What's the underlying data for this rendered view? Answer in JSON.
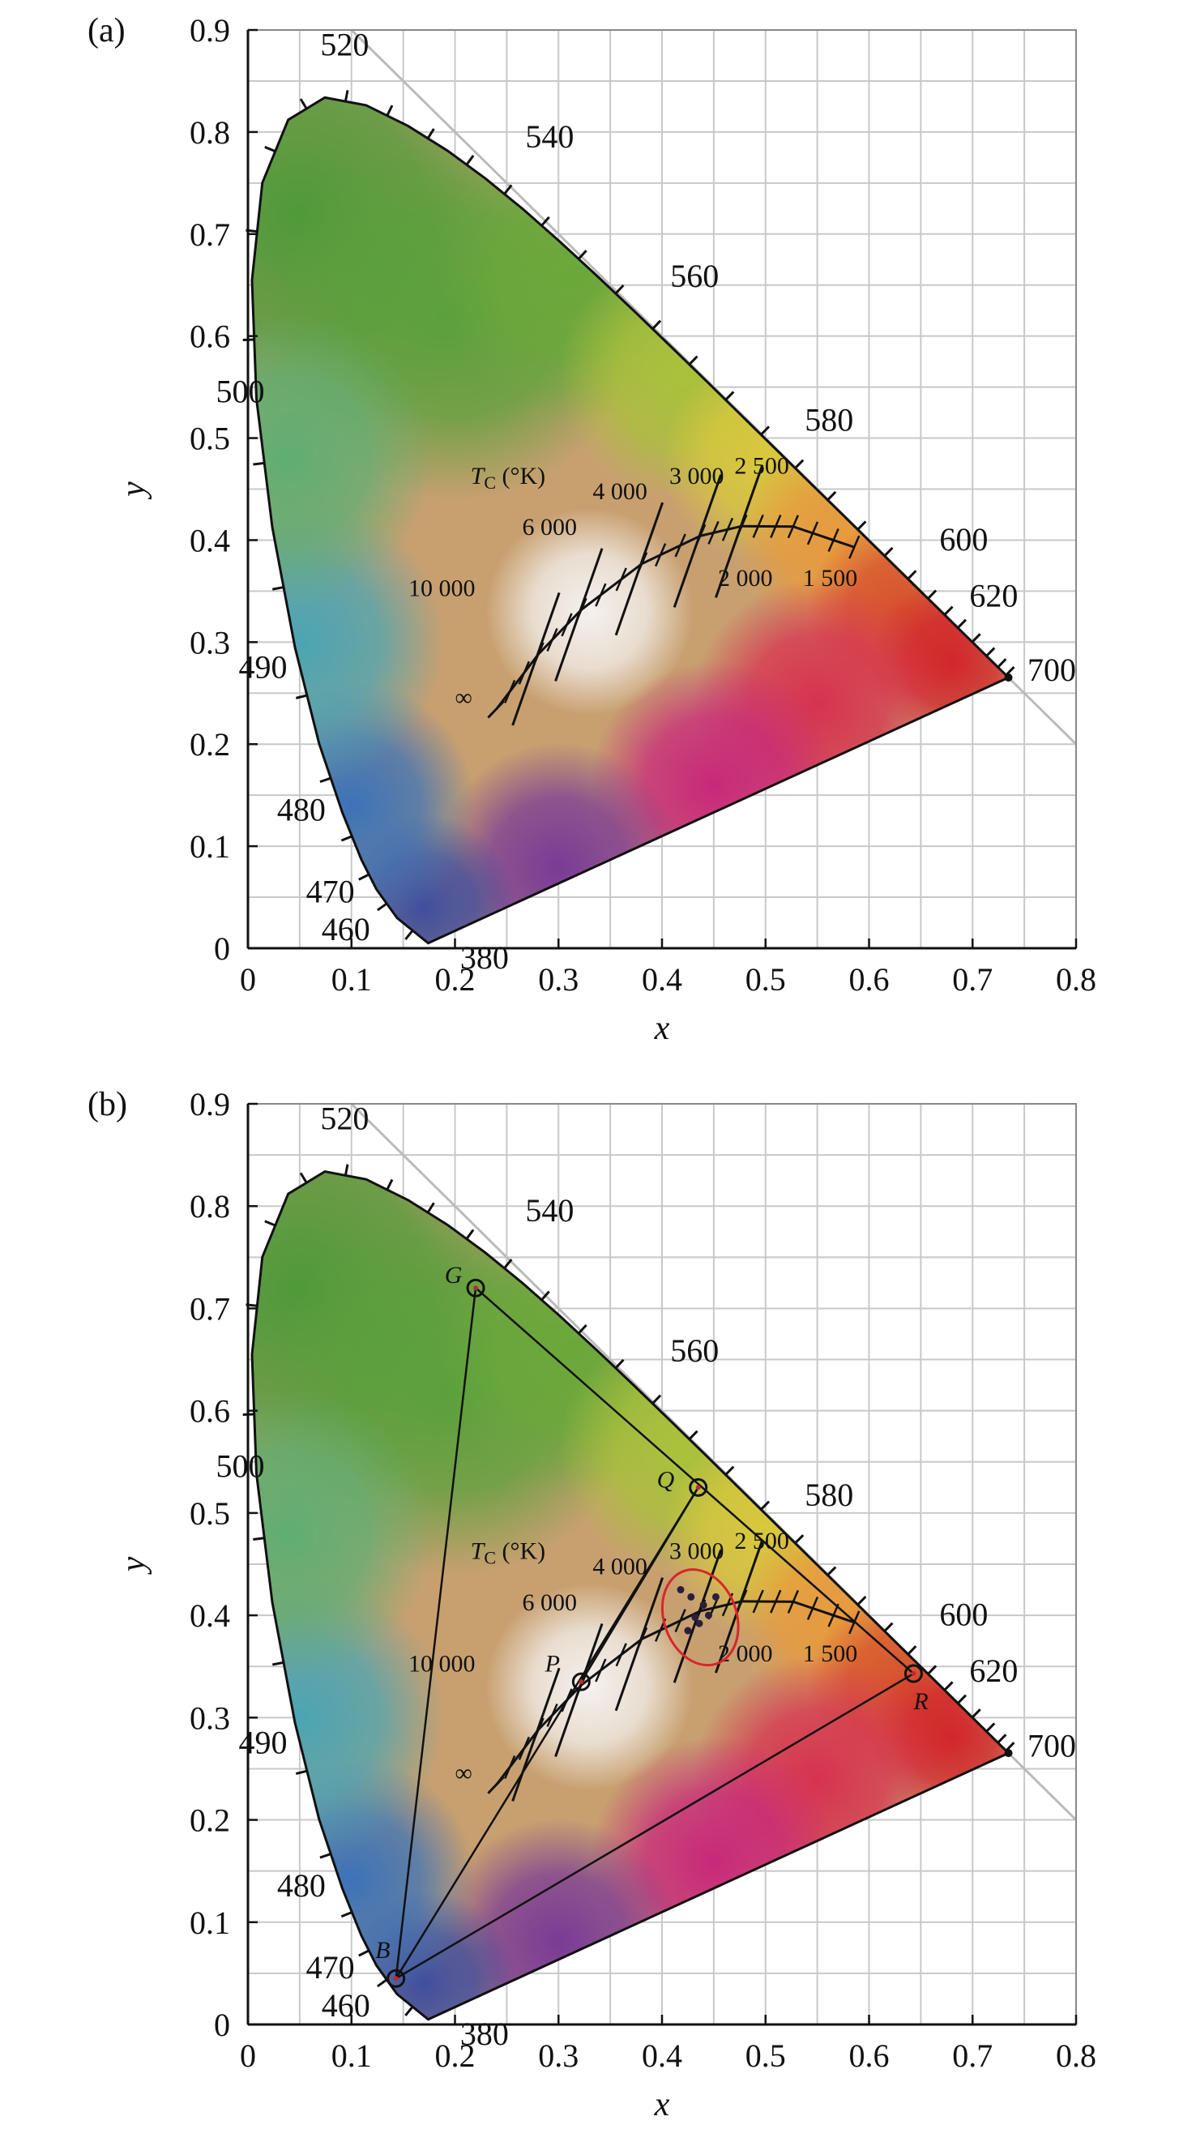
{
  "chart_data": [
    {
      "panel_label": "(a)",
      "type": "chromaticity-diagram",
      "xlabel": "x",
      "ylabel": "y",
      "xlim": [
        0,
        0.8
      ],
      "ylim": [
        0,
        0.9
      ],
      "xticks": [
        "0",
        "0.1",
        "0.2",
        "0.3",
        "0.4",
        "0.5",
        "0.6",
        "0.7",
        "0.8"
      ],
      "yticks": [
        "0",
        "0.1",
        "0.2",
        "0.3",
        "0.4",
        "0.5",
        "0.6",
        "0.7",
        "0.8",
        "0.9"
      ],
      "grid": true,
      "spectral_locus": [
        {
          "nm": 380,
          "x": 0.1741,
          "y": 0.005
        },
        {
          "nm": 460,
          "x": 0.144,
          "y": 0.0297
        },
        {
          "nm": 470,
          "x": 0.1241,
          "y": 0.0578
        },
        {
          "nm": 475,
          "x": 0.1096,
          "y": 0.0868
        },
        {
          "nm": 480,
          "x": 0.0913,
          "y": 0.1327
        },
        {
          "nm": 485,
          "x": 0.0687,
          "y": 0.2007
        },
        {
          "nm": 490,
          "x": 0.0454,
          "y": 0.295
        },
        {
          "nm": 495,
          "x": 0.0235,
          "y": 0.4127
        },
        {
          "nm": 500,
          "x": 0.0082,
          "y": 0.5384
        },
        {
          "nm": 505,
          "x": 0.0039,
          "y": 0.6548
        },
        {
          "nm": 510,
          "x": 0.0139,
          "y": 0.7502
        },
        {
          "nm": 515,
          "x": 0.0389,
          "y": 0.812
        },
        {
          "nm": 520,
          "x": 0.0743,
          "y": 0.8338
        },
        {
          "nm": 525,
          "x": 0.1142,
          "y": 0.8262
        },
        {
          "nm": 530,
          "x": 0.1547,
          "y": 0.8059
        },
        {
          "nm": 535,
          "x": 0.1929,
          "y": 0.7816
        },
        {
          "nm": 540,
          "x": 0.2296,
          "y": 0.7543
        },
        {
          "nm": 545,
          "x": 0.2658,
          "y": 0.7243
        },
        {
          "nm": 550,
          "x": 0.3016,
          "y": 0.6923
        },
        {
          "nm": 555,
          "x": 0.3373,
          "y": 0.6589
        },
        {
          "nm": 560,
          "x": 0.3731,
          "y": 0.6245
        },
        {
          "nm": 565,
          "x": 0.4087,
          "y": 0.5896
        },
        {
          "nm": 570,
          "x": 0.4441,
          "y": 0.5547
        },
        {
          "nm": 575,
          "x": 0.4788,
          "y": 0.5202
        },
        {
          "nm": 580,
          "x": 0.5125,
          "y": 0.4866
        },
        {
          "nm": 585,
          "x": 0.5448,
          "y": 0.4544
        },
        {
          "nm": 590,
          "x": 0.5752,
          "y": 0.4242
        },
        {
          "nm": 595,
          "x": 0.6029,
          "y": 0.3965
        },
        {
          "nm": 600,
          "x": 0.627,
          "y": 0.3725
        },
        {
          "nm": 605,
          "x": 0.6482,
          "y": 0.3514
        },
        {
          "nm": 610,
          "x": 0.6658,
          "y": 0.334
        },
        {
          "nm": 615,
          "x": 0.6801,
          "y": 0.3197
        },
        {
          "nm": 620,
          "x": 0.6915,
          "y": 0.3083
        },
        {
          "nm": 630,
          "x": 0.7079,
          "y": 0.292
        },
        {
          "nm": 640,
          "x": 0.719,
          "y": 0.2809
        },
        {
          "nm": 660,
          "x": 0.73,
          "y": 0.27
        },
        {
          "nm": 700,
          "x": 0.7347,
          "y": 0.2653
        }
      ],
      "wavelength_labels": [
        "380",
        "460",
        "470",
        "480",
        "490",
        "500",
        "520",
        "540",
        "560",
        "580",
        "600",
        "620",
        "700"
      ],
      "planckian_locus": [
        {
          "T": "1500",
          "x": 0.5857,
          "y": 0.3931
        },
        {
          "T": "2000",
          "x": 0.5267,
          "y": 0.4133
        },
        {
          "T": "2500",
          "x": 0.477,
          "y": 0.4137
        },
        {
          "T": "3000",
          "x": 0.4369,
          "y": 0.4041
        },
        {
          "T": "4000",
          "x": 0.3805,
          "y": 0.3768
        },
        {
          "T": "6000",
          "x": 0.3221,
          "y": 0.3318
        },
        {
          "T": "10000",
          "x": 0.2807,
          "y": 0.2884
        },
        {
          "T": "∞",
          "x": 0.2399,
          "y": 0.2342
        }
      ],
      "cct_title": "T",
      "cct_title_sub": "C",
      "cct_title_unit": " (°K)",
      "cct_labels": [
        "10 000",
        "6 000",
        "4 000",
        "3 000",
        "2 500",
        "2 000",
        "1 500",
        "∞"
      ]
    },
    {
      "panel_label": "(b)",
      "type": "chromaticity-diagram",
      "xlabel": "x",
      "ylabel": "y",
      "xlim": [
        0,
        0.8
      ],
      "ylim": [
        0,
        0.9
      ],
      "xticks": [
        "0",
        "0.1",
        "0.2",
        "0.3",
        "0.4",
        "0.5",
        "0.6",
        "0.7",
        "0.8"
      ],
      "yticks": [
        "0",
        "0.1",
        "0.2",
        "0.3",
        "0.4",
        "0.5",
        "0.6",
        "0.7",
        "0.8",
        "0.9"
      ],
      "grid": true,
      "wavelength_labels": [
        "380",
        "460",
        "470",
        "480",
        "490",
        "500",
        "520",
        "540",
        "560",
        "580",
        "600",
        "620",
        "700"
      ],
      "cct_title": "T",
      "cct_title_sub": "C",
      "cct_title_unit": " (°K)",
      "cct_labels": [
        "10 000",
        "6 000",
        "4 000",
        "3 000",
        "2 500",
        "2 000",
        "1 500",
        "∞"
      ],
      "points": [
        {
          "label": "G",
          "x": 0.22,
          "y": 0.72
        },
        {
          "label": "Q",
          "x": 0.435,
          "y": 0.525
        },
        {
          "label": "P",
          "x": 0.322,
          "y": 0.335
        },
        {
          "label": "R",
          "x": 0.643,
          "y": 0.343
        },
        {
          "label": "B",
          "x": 0.143,
          "y": 0.045
        }
      ],
      "lines": [
        [
          "G",
          "B"
        ],
        [
          "G",
          "R"
        ],
        [
          "B",
          "R"
        ],
        [
          "B",
          "Q"
        ],
        [
          "P",
          "Q"
        ]
      ],
      "cluster_points": [
        {
          "x": 0.418,
          "y": 0.425
        },
        {
          "x": 0.428,
          "y": 0.418
        },
        {
          "x": 0.44,
          "y": 0.41
        },
        {
          "x": 0.452,
          "y": 0.418
        },
        {
          "x": 0.432,
          "y": 0.398
        },
        {
          "x": 0.445,
          "y": 0.4
        },
        {
          "x": 0.425,
          "y": 0.385
        },
        {
          "x": 0.436,
          "y": 0.392
        }
      ],
      "ellipse": {
        "cx": 0.437,
        "cy": 0.398,
        "rx": 0.035,
        "ry": 0.048
      }
    }
  ]
}
